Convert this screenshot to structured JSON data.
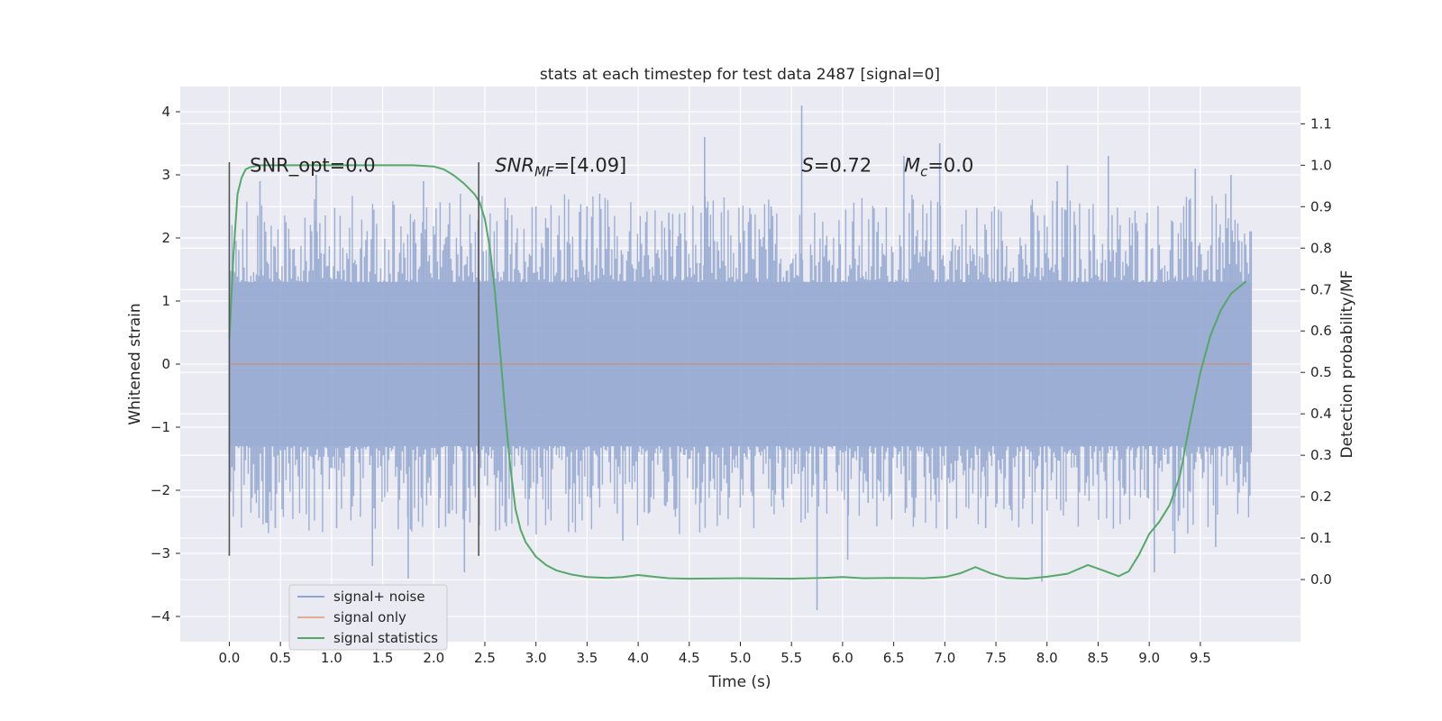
{
  "chart_data": {
    "type": "line",
    "title": "stats at each timestep for test data 2487 [signal=0]",
    "xlabel": "Time (s)",
    "ylabel": "Whitened strain",
    "y2label": "Detection probability/MF",
    "xlim": [
      -0.48,
      10.48
    ],
    "ylim": [
      -4.4,
      4.4
    ],
    "y2lim": [
      -0.15,
      1.19
    ],
    "xticks": [
      0.0,
      0.5,
      1.0,
      1.5,
      2.0,
      2.5,
      3.0,
      3.5,
      4.0,
      4.5,
      5.0,
      5.5,
      6.0,
      6.5,
      7.0,
      7.5,
      8.0,
      8.5,
      9.0,
      9.5
    ],
    "xtick_labels": [
      "0.0",
      "0.5",
      "1.0",
      "1.5",
      "2.0",
      "2.5",
      "3.0",
      "3.5",
      "4.0",
      "4.5",
      "5.0",
      "5.5",
      "6.0",
      "6.5",
      "7.0",
      "7.5",
      "8.0",
      "8.5",
      "9.0",
      "9.5"
    ],
    "yticks": [
      4,
      3,
      2,
      1,
      0,
      -1,
      -2,
      -3,
      -4
    ],
    "ytick_labels": [
      "4",
      "3",
      "2",
      "1",
      "0",
      "−1",
      "−2",
      "−3",
      "−4"
    ],
    "y2ticks": [
      1.1,
      1.0,
      0.9,
      0.8,
      0.7,
      0.6,
      0.5,
      0.4,
      0.3,
      0.2,
      0.1,
      0.0
    ],
    "y2tick_labels": [
      "1.1",
      "1.0",
      "0.9",
      "0.8",
      "0.7",
      "0.6",
      "0.5",
      "0.4",
      "0.3",
      "0.2",
      "0.1",
      "0.0"
    ],
    "grid": true,
    "legend_placement": "lower-left",
    "vertical_markers": [
      {
        "x": 0.0,
        "y_range": [
          -3.04,
          3.2
        ]
      },
      {
        "x": 2.44,
        "y_range": [
          -3.04,
          3.2
        ]
      }
    ],
    "annotations": [
      {
        "text": "SNR_opt=0.0",
        "x": 0.2,
        "y": 3.15,
        "italic": false
      },
      {
        "text": "SNR_MF=[4.09]",
        "main": "SNR",
        "sub": "MF",
        "rest": "=[4.09]",
        "x": 2.6,
        "y": 3.15,
        "italic": true
      },
      {
        "text": "S=0.72",
        "main": "S",
        "sub": "",
        "rest": "=0.72",
        "x": 5.6,
        "y": 3.15,
        "italic": true
      },
      {
        "text": "M_c=0.0",
        "main": "M",
        "sub": "c",
        "rest": "=0.0",
        "x": 6.6,
        "y": 3.15,
        "italic": true
      }
    ],
    "series": [
      {
        "name": "signal+ noise",
        "color": "#8fa4cf",
        "kind": "noise",
        "x_range": [
          0.0,
          10.0
        ],
        "envelope": [
          -1.8,
          1.8
        ],
        "core": [
          -1.3,
          1.3
        ],
        "spikes": [
          [
            0.3,
            2.9
          ],
          [
            0.45,
            -2.6
          ],
          [
            0.85,
            3.0
          ],
          [
            1.05,
            -2.6
          ],
          [
            1.4,
            -3.2
          ],
          [
            1.75,
            -3.4
          ],
          [
            1.9,
            2.9
          ],
          [
            2.05,
            -2.6
          ],
          [
            2.3,
            -3.3
          ],
          [
            3.0,
            2.5
          ],
          [
            3.5,
            2.5
          ],
          [
            3.85,
            -2.8
          ],
          [
            4.3,
            2.4
          ],
          [
            4.65,
            3.6
          ],
          [
            5.3,
            2.5
          ],
          [
            5.6,
            4.1
          ],
          [
            5.75,
            -3.9
          ],
          [
            6.05,
            -3.1
          ],
          [
            6.25,
            -2.2
          ],
          [
            6.6,
            3.3
          ],
          [
            6.95,
            3.5
          ],
          [
            7.4,
            -2.6
          ],
          [
            7.95,
            -3.45
          ],
          [
            8.1,
            2.9
          ],
          [
            8.2,
            3.15
          ],
          [
            8.6,
            3.3
          ],
          [
            9.05,
            -3.3
          ],
          [
            9.25,
            -3.0
          ],
          [
            9.45,
            3.1
          ],
          [
            9.8,
            3.0
          ],
          [
            9.65,
            -2.9
          ]
        ]
      },
      {
        "name": "signal only",
        "color": "#dd8452",
        "kind": "flat",
        "x_range": [
          0.0,
          10.0
        ],
        "value": 0.0
      },
      {
        "name": "signal statistics",
        "color": "#55a868",
        "axis": "right",
        "x": [
          0.0,
          0.04,
          0.08,
          0.12,
          0.16,
          0.2,
          0.3,
          0.5,
          1.0,
          1.5,
          1.8,
          2.0,
          2.1,
          2.2,
          2.3,
          2.4,
          2.45,
          2.5,
          2.55,
          2.6,
          2.65,
          2.7,
          2.75,
          2.8,
          2.85,
          2.9,
          3.0,
          3.1,
          3.2,
          3.35,
          3.5,
          3.7,
          3.85,
          4.0,
          4.15,
          4.3,
          4.5,
          5.0,
          5.5,
          5.8,
          6.0,
          6.2,
          6.5,
          6.8,
          7.0,
          7.15,
          7.3,
          7.45,
          7.6,
          7.8,
          8.0,
          8.2,
          8.4,
          8.55,
          8.7,
          8.8,
          8.9,
          9.0,
          9.1,
          9.2,
          9.3,
          9.4,
          9.5,
          9.6,
          9.7,
          9.8,
          9.9,
          9.95
        ],
        "values": [
          0.58,
          0.78,
          0.93,
          0.97,
          0.99,
          0.995,
          1.0,
          1.0,
          1.0,
          1.0,
          1.0,
          0.997,
          0.99,
          0.975,
          0.955,
          0.93,
          0.91,
          0.87,
          0.8,
          0.69,
          0.55,
          0.4,
          0.27,
          0.17,
          0.12,
          0.09,
          0.055,
          0.035,
          0.022,
          0.012,
          0.006,
          0.004,
          0.006,
          0.011,
          0.007,
          0.003,
          0.002,
          0.003,
          0.002,
          0.004,
          0.006,
          0.003,
          0.004,
          0.003,
          0.006,
          0.015,
          0.03,
          0.015,
          0.004,
          0.002,
          0.007,
          0.014,
          0.035,
          0.022,
          0.008,
          0.02,
          0.06,
          0.11,
          0.14,
          0.18,
          0.25,
          0.38,
          0.5,
          0.59,
          0.65,
          0.69,
          0.71,
          0.72
        ]
      }
    ]
  }
}
